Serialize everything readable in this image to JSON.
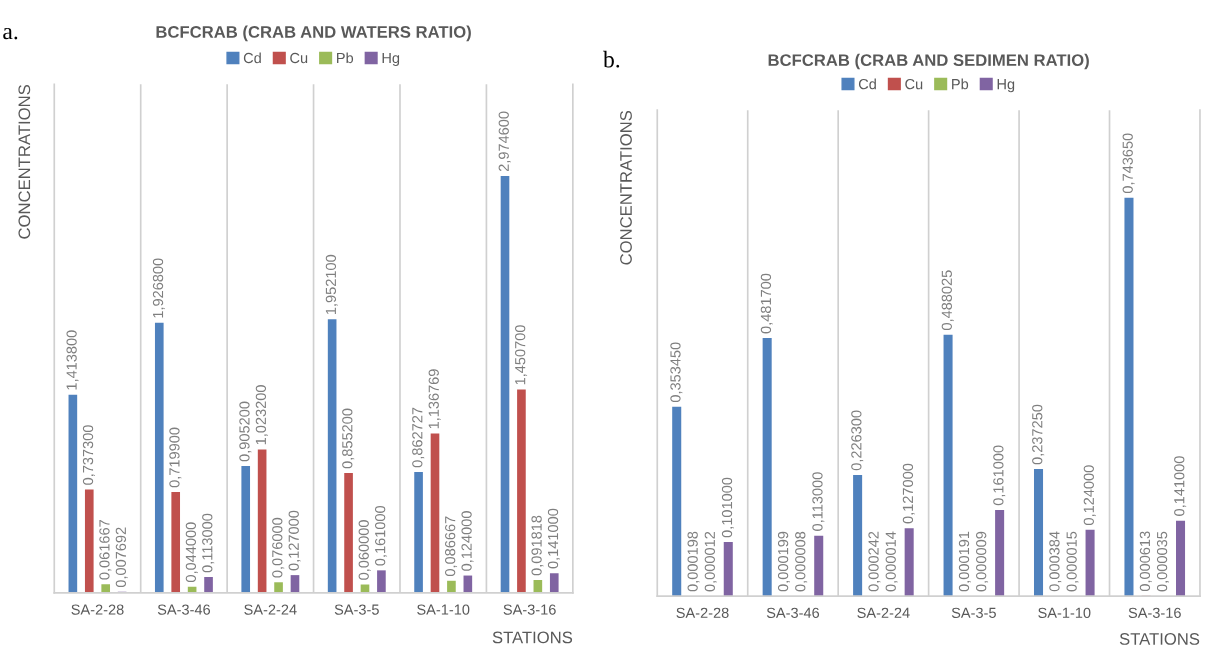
{
  "chart_data": [
    {
      "type": "bar",
      "title": "BCFCRAB (CRAB AND WATERS RATIO)",
      "xlabel": "STATIONS",
      "ylabel": "CONCENTRATIONS",
      "annotations": [
        "a."
      ],
      "categories": [
        "SA-2-28",
        "SA-3-46",
        "SA-2-24",
        "SA-3-5",
        "SA-1-10",
        "SA-3-16"
      ],
      "series": [
        {
          "name": "Cd",
          "color": "#4f81bd",
          "values": [
            1.4138,
            1.9268,
            0.9052,
            1.9521,
            0.862727,
            2.9746
          ],
          "value_labels": [
            "1,413800",
            "1,926800",
            "0,905200",
            "1,952100",
            "0,862727",
            "2,974600"
          ]
        },
        {
          "name": "Cu",
          "color": "#c0504d",
          "values": [
            0.7373,
            0.7199,
            1.0232,
            0.8552,
            1.136769,
            1.4507
          ],
          "value_labels": [
            "0,737300",
            "0,719900",
            "1,023200",
            "0,855200",
            "1,136769",
            "1,450700"
          ]
        },
        {
          "name": "Pb",
          "color": "#9bbb59",
          "values": [
            0.061667,
            0.044,
            0.076,
            0.06,
            0.086667,
            0.091818
          ],
          "value_labels": [
            "0,061667",
            "0,044000",
            "0,076000",
            "0,060000",
            "0,086667",
            "0,091818"
          ]
        },
        {
          "name": "Hg",
          "color": "#8064a2",
          "values": [
            0.007692,
            0.113,
            0.127,
            0.161,
            0.124,
            0.141
          ],
          "value_labels": [
            "0,007692",
            "0,113000",
            "0,127000",
            "0,161000",
            "0,124000",
            "0,141000"
          ]
        }
      ],
      "legend": "top",
      "grid": "x"
    },
    {
      "type": "bar",
      "title": "BCFCRAB (CRAB AND SEDIMEN RATIO)",
      "xlabel": "STATIONS",
      "ylabel": "CONCENTRATIONS",
      "annotations": [
        "b."
      ],
      "categories": [
        "SA-2-28",
        "SA-3-46",
        "SA-2-24",
        "SA-3-5",
        "SA-1-10",
        "SA-3-16"
      ],
      "series": [
        {
          "name": "Cd",
          "color": "#4f81bd",
          "values": [
            0.35345,
            0.4817,
            0.2263,
            0.488025,
            0.23725,
            0.74365
          ],
          "value_labels": [
            "0,353450",
            "0,481700",
            "0,226300",
            "0,488025",
            "0,237250",
            "0,743650"
          ]
        },
        {
          "name": "Cu",
          "color": "#c0504d",
          "values": [
            0.000198,
            0.000199,
            0.000242,
            0.000191,
            0.000384,
            0.000613
          ],
          "value_labels": [
            "0,000198",
            "0,000199",
            "0,000242",
            "0,000191",
            "0,000384",
            "0,000613"
          ]
        },
        {
          "name": "Pb",
          "color": "#9bbb59",
          "values": [
            1.2e-05,
            8e-06,
            1.4e-05,
            9e-06,
            1.5e-05,
            3.5e-05
          ],
          "value_labels": [
            "0,000012",
            "0,000008",
            "0,000014",
            "0,000009",
            "0,000015",
            "0,000035"
          ]
        },
        {
          "name": "Hg",
          "color": "#8064a2",
          "values": [
            0.101,
            0.113,
            0.127,
            0.161,
            0.124,
            0.141
          ],
          "value_labels": [
            "0,101000",
            "0,113000",
            "0,127000",
            "0,161000",
            "0,124000",
            "0,141000"
          ]
        }
      ],
      "legend": "top",
      "grid": "x"
    }
  ]
}
